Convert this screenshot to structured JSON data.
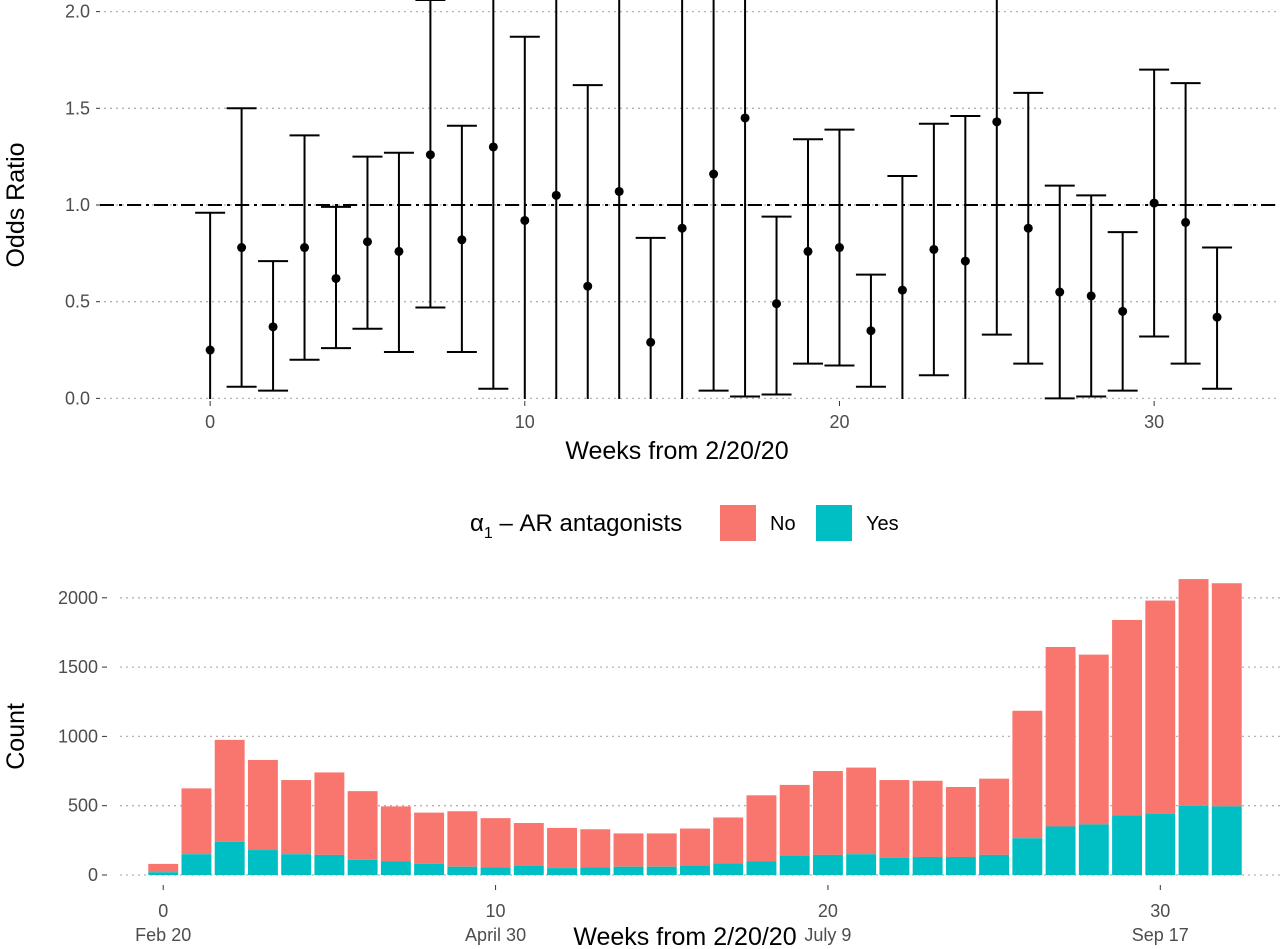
{
  "chart_data": [
    {
      "type": "scatter",
      "subtype": "error-bar",
      "xlabel": "Weeks from 2/20/20",
      "ylabel": "Odds Ratio",
      "xlim": [
        -3.5,
        34
      ],
      "ylim": [
        -0.06,
        2.06
      ],
      "xticks": [
        0,
        10,
        20,
        30
      ],
      "yticks": [
        0.0,
        0.5,
        1.0,
        1.5,
        2.0
      ],
      "ytick_labels": [
        "0.0",
        "0.5",
        "1.0",
        "1.5",
        "2.0"
      ],
      "reference_line": 1.0,
      "grid": "horizontal-dotted",
      "point_color": "#000000",
      "points": [
        {
          "x": 0,
          "or": 0.25,
          "lo": -0.1,
          "hi": 0.96
        },
        {
          "x": 1,
          "or": 0.78,
          "lo": 0.06,
          "hi": 1.5
        },
        {
          "x": 2,
          "or": 0.37,
          "lo": 0.04,
          "hi": 0.71
        },
        {
          "x": 3,
          "or": 0.78,
          "lo": 0.2,
          "hi": 1.36
        },
        {
          "x": 4,
          "or": 0.62,
          "lo": 0.26,
          "hi": 0.99
        },
        {
          "x": 5,
          "or": 0.81,
          "lo": 0.36,
          "hi": 1.25
        },
        {
          "x": 6,
          "or": 0.76,
          "lo": 0.24,
          "hi": 1.27
        },
        {
          "x": 7,
          "or": 1.26,
          "lo": 0.47,
          "hi": 2.06
        },
        {
          "x": 8,
          "or": 0.82,
          "lo": 0.24,
          "hi": 1.41
        },
        {
          "x": 9,
          "or": 1.3,
          "lo": 0.05,
          "hi": 2.6
        },
        {
          "x": 10,
          "or": 0.92,
          "lo": -0.02,
          "hi": 1.87
        },
        {
          "x": 11,
          "or": 1.05,
          "lo": -0.01,
          "hi": 2.5
        },
        {
          "x": 12,
          "or": 0.58,
          "lo": -0.4,
          "hi": 1.62
        },
        {
          "x": 13,
          "or": 1.07,
          "lo": -0.3,
          "hi": 2.5
        },
        {
          "x": 14,
          "or": 0.29,
          "lo": -0.3,
          "hi": 0.83
        },
        {
          "x": 15,
          "or": 0.88,
          "lo": -0.3,
          "hi": 2.5
        },
        {
          "x": 16,
          "or": 1.16,
          "lo": 0.04,
          "hi": 2.5
        },
        {
          "x": 17,
          "or": 1.45,
          "lo": 0.01,
          "hi": 2.8
        },
        {
          "x": 18,
          "or": 0.49,
          "lo": 0.02,
          "hi": 0.94
        },
        {
          "x": 19,
          "or": 0.76,
          "lo": 0.18,
          "hi": 1.34
        },
        {
          "x": 20,
          "or": 0.78,
          "lo": 0.17,
          "hi": 1.39
        },
        {
          "x": 21,
          "or": 0.35,
          "lo": 0.06,
          "hi": 0.64
        },
        {
          "x": 22,
          "or": 0.56,
          "lo": -0.03,
          "hi": 1.15
        },
        {
          "x": 23,
          "or": 0.77,
          "lo": 0.12,
          "hi": 1.42
        },
        {
          "x": 24,
          "or": 0.71,
          "lo": -0.04,
          "hi": 1.46
        },
        {
          "x": 25,
          "or": 1.43,
          "lo": 0.33,
          "hi": 2.6
        },
        {
          "x": 26,
          "or": 0.88,
          "lo": 0.18,
          "hi": 1.58
        },
        {
          "x": 27,
          "or": 0.55,
          "lo": 0.0,
          "hi": 1.1
        },
        {
          "x": 28,
          "or": 0.53,
          "lo": 0.01,
          "hi": 1.05
        },
        {
          "x": 29,
          "or": 0.45,
          "lo": 0.04,
          "hi": 0.86
        },
        {
          "x": 30,
          "or": 1.01,
          "lo": 0.32,
          "hi": 1.7
        },
        {
          "x": 31,
          "or": 0.91,
          "lo": 0.18,
          "hi": 1.63
        },
        {
          "x": 32,
          "or": 0.42,
          "lo": 0.05,
          "hi": 0.78
        }
      ]
    },
    {
      "type": "bar",
      "stacked": true,
      "xlabel": "Weeks from 2/20/20",
      "ylabel": "Count",
      "xlim": [
        -1.3,
        33
      ],
      "ylim": [
        0,
        2150
      ],
      "xticks": [
        0,
        10,
        20,
        30
      ],
      "xtick_dates": [
        "Feb 20",
        "April 30",
        "July 9",
        "Sep 17"
      ],
      "yticks": [
        0,
        500,
        1000,
        1500,
        2000
      ],
      "legend_title": "α1 – AR antagonists",
      "legend_position": "top",
      "grid": "horizontal-dotted",
      "weeks": [
        0,
        1,
        2,
        3,
        4,
        5,
        6,
        7,
        8,
        9,
        10,
        11,
        12,
        13,
        14,
        15,
        16,
        17,
        18,
        19,
        20,
        21,
        22,
        23,
        24,
        25,
        26,
        27,
        28,
        29,
        30,
        31,
        32
      ],
      "series": [
        {
          "name": "Yes",
          "color": "#00BFC4",
          "values": [
            20,
            150,
            240,
            180,
            150,
            145,
            110,
            100,
            80,
            60,
            55,
            65,
            50,
            55,
            60,
            60,
            70,
            85,
            100,
            140,
            145,
            150,
            125,
            130,
            130,
            145,
            265,
            350,
            365,
            430,
            440,
            500,
            495
          ]
        },
        {
          "name": "No",
          "color": "#F8766D",
          "values": [
            60,
            475,
            735,
            650,
            535,
            595,
            495,
            395,
            370,
            400,
            355,
            310,
            290,
            275,
            240,
            240,
            265,
            330,
            475,
            510,
            605,
            625,
            560,
            550,
            505,
            550,
            920,
            1295,
            1225,
            1410,
            1540,
            1635,
            1610
          ]
        }
      ]
    }
  ],
  "legend": {
    "title_base": "α",
    "title_sub": "1",
    "title_rest": " – AR antagonists",
    "items": [
      {
        "label": "No",
        "color": "#F8766D"
      },
      {
        "label": "Yes",
        "color": "#00BFC4"
      }
    ]
  }
}
